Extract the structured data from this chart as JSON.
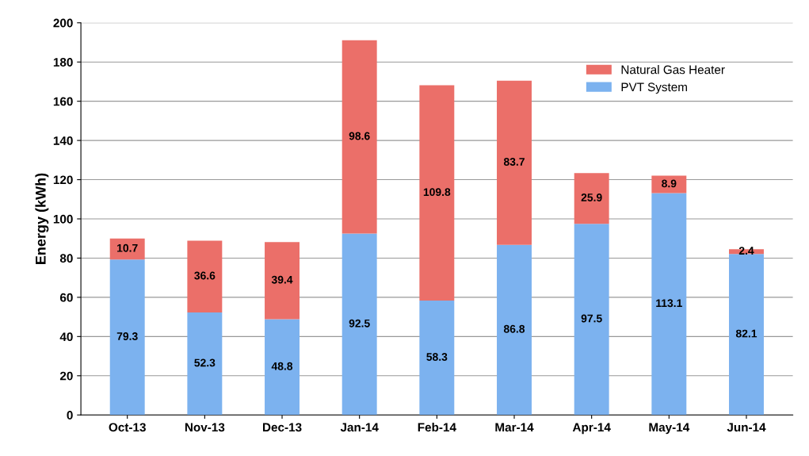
{
  "chart_data": {
    "type": "bar",
    "stacked": true,
    "ylabel": "Energy (kWh)",
    "categories": [
      "Oct-13",
      "Nov-13",
      "Dec-13",
      "Jan-14",
      "Feb-14",
      "Mar-14",
      "Apr-14",
      "May-14",
      "Jun-14"
    ],
    "series": [
      {
        "name": "PVT System",
        "color": "#7cb2ef",
        "values": [
          79.3,
          52.3,
          48.8,
          92.5,
          58.3,
          86.8,
          97.5,
          113.1,
          82.1
        ]
      },
      {
        "name": "Natural Gas Heater",
        "color": "#eb6f69",
        "values": [
          10.7,
          36.6,
          39.4,
          98.6,
          109.8,
          83.7,
          25.9,
          8.9,
          2.4
        ]
      }
    ],
    "ylim": [
      0,
      200
    ],
    "yticks": [
      0,
      20,
      40,
      60,
      80,
      100,
      120,
      140,
      160,
      180,
      200
    ],
    "grid": "y",
    "legend": "top right",
    "data_labels": true
  }
}
